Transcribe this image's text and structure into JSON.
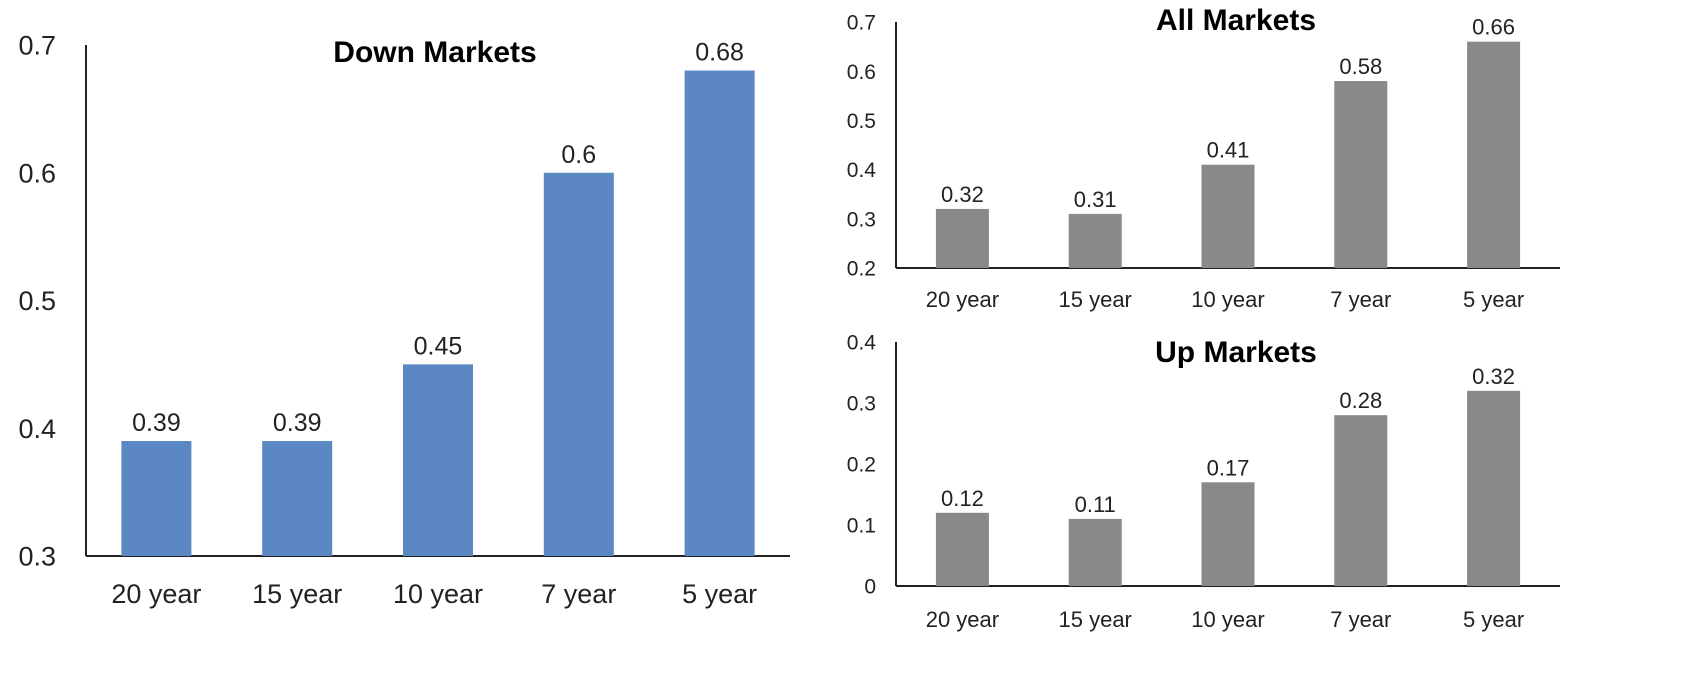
{
  "chart_data": [
    {
      "id": "down",
      "type": "bar",
      "title": "Down Markets",
      "categories": [
        "20 year",
        "15 year",
        "10 year",
        "7 year",
        "5 year"
      ],
      "values": [
        0.39,
        0.39,
        0.45,
        0.6,
        0.68
      ],
      "value_labels": [
        "0.39",
        "0.39",
        "0.45",
        "0.6",
        "0.68"
      ],
      "ylim": [
        0.3,
        0.7
      ],
      "yticks": [
        "0.3",
        "0.4",
        "0.5",
        "0.6",
        "0.7"
      ],
      "color": "#5b87c2",
      "grid": false
    },
    {
      "id": "all",
      "type": "bar",
      "title": "All Markets",
      "categories": [
        "20 year",
        "15 year",
        "10 year",
        "7 year",
        "5 year"
      ],
      "values": [
        0.32,
        0.31,
        0.41,
        0.58,
        0.66
      ],
      "value_labels": [
        "0.32",
        "0.31",
        "0.41",
        "0.58",
        "0.66"
      ],
      "ylim": [
        0.2,
        0.7
      ],
      "yticks": [
        "0.2",
        "0.3",
        "0.4",
        "0.5",
        "0.6",
        "0.7"
      ],
      "color": "#898989",
      "grid": false
    },
    {
      "id": "up",
      "type": "bar",
      "title": "Up Markets",
      "categories": [
        "20 year",
        "15 year",
        "10 year",
        "7 year",
        "5 year"
      ],
      "values": [
        0.12,
        0.11,
        0.17,
        0.28,
        0.32
      ],
      "value_labels": [
        "0.12",
        "0.11",
        "0.17",
        "0.28",
        "0.32"
      ],
      "ylim": [
        0,
        0.4
      ],
      "yticks": [
        "0",
        "0.1",
        "0.2",
        "0.3",
        "0.4"
      ],
      "color": "#898989",
      "grid": false
    }
  ]
}
